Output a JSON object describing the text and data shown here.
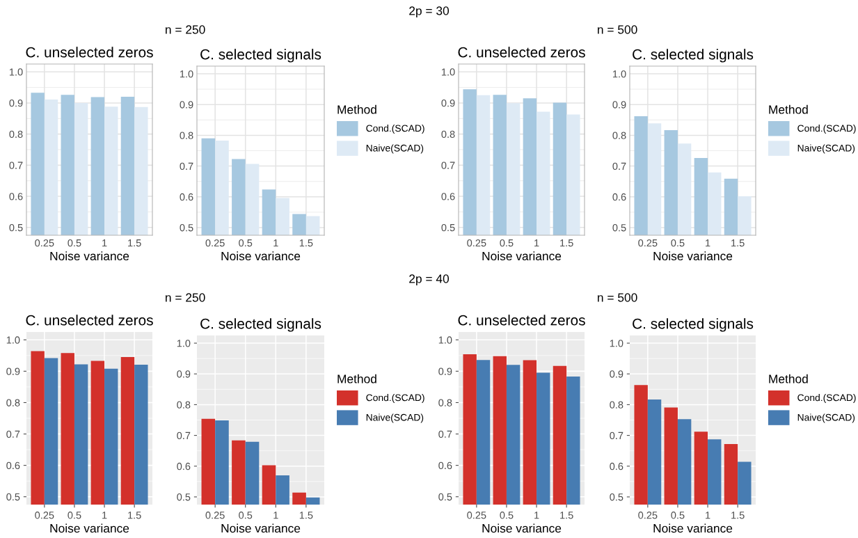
{
  "chart_data": [
    {
      "type": "bar",
      "title": "C. unselected zeros",
      "xlabel": "Noise variance",
      "categories": [
        "0.25",
        "0.5",
        "1",
        "1.5"
      ],
      "ylim": [
        0.475,
        1.025
      ],
      "yticks": [
        {
          "value": 0.5,
          "label": "0.5"
        },
        {
          "value": 0.6,
          "label": "0.6"
        },
        {
          "value": 0.7,
          "label": "0.7"
        },
        {
          "value": 0.8,
          "label": "0.8"
        },
        {
          "value": 0.9,
          "label": "0.9"
        },
        {
          "value": 1.0,
          "label": "1.0"
        }
      ],
      "grid": true,
      "annotations": [
        "2p = 30",
        "n = 250"
      ],
      "series": [
        {
          "color": "#a6c8e0",
          "values": [
            0.933,
            0.926,
            0.919,
            0.92
          ]
        },
        {
          "color": "#deeaf5",
          "values": [
            0.911,
            0.9,
            0.888,
            0.887
          ]
        }
      ]
    },
    {
      "type": "bar",
      "title": "C. selected signals",
      "xlabel": "Noise variance",
      "categories": [
        "0.25",
        "0.5",
        "1",
        "1.5"
      ],
      "ylim": [
        0.475,
        1.025
      ],
      "yticks": [
        {
          "value": 0.5,
          "label": "0.5"
        },
        {
          "value": 0.6,
          "label": "0.6"
        },
        {
          "value": 0.7,
          "label": "0.7"
        },
        {
          "value": 0.8,
          "label": "0.8"
        },
        {
          "value": 0.9,
          "label": "0.9"
        },
        {
          "value": 1.0,
          "label": "1.0"
        }
      ],
      "grid": true,
      "legend": "right",
      "legend_title": "Method",
      "series": [
        {
          "name": "Cond.(SCAD)",
          "color": "#a6c8e0",
          "values": [
            0.79,
            0.723,
            0.624,
            0.544
          ]
        },
        {
          "name": "Naive(SCAD)",
          "color": "#deeaf5",
          "values": [
            0.783,
            0.707,
            0.596,
            0.537
          ]
        }
      ]
    },
    {
      "type": "bar",
      "title": "C. unselected zeros",
      "xlabel": "Noise variance",
      "categories": [
        "0.25",
        "0.5",
        "1",
        "1.5"
      ],
      "ylim": [
        0.475,
        1.025
      ],
      "yticks": [
        {
          "value": 0.5,
          "label": "0.5"
        },
        {
          "value": 0.6,
          "label": "0.6"
        },
        {
          "value": 0.7,
          "label": "0.7"
        },
        {
          "value": 0.8,
          "label": "0.8"
        },
        {
          "value": 0.9,
          "label": "0.9"
        },
        {
          "value": 1.0,
          "label": "1.0"
        }
      ],
      "grid": true,
      "annotations": [
        "n = 500"
      ],
      "series": [
        {
          "color": "#a6c8e0",
          "values": [
            0.944,
            0.926,
            0.915,
            0.901
          ]
        },
        {
          "color": "#deeaf5",
          "values": [
            0.925,
            0.899,
            0.872,
            0.863
          ]
        }
      ]
    },
    {
      "type": "bar",
      "title": "C. selected signals",
      "xlabel": "Noise variance",
      "categories": [
        "0.25",
        "0.5",
        "1",
        "1.5"
      ],
      "ylim": [
        0.475,
        1.025
      ],
      "yticks": [
        {
          "value": 0.5,
          "label": "0.5"
        },
        {
          "value": 0.6,
          "label": "0.6"
        },
        {
          "value": 0.7,
          "label": "0.7"
        },
        {
          "value": 0.8,
          "label": "0.8"
        },
        {
          "value": 0.9,
          "label": "0.9"
        },
        {
          "value": 1.0,
          "label": "1.0"
        }
      ],
      "grid": true,
      "legend": "right",
      "legend_title": "Method",
      "series": [
        {
          "name": "Cond.(SCAD)",
          "color": "#a6c8e0",
          "values": [
            0.862,
            0.817,
            0.726,
            0.659
          ]
        },
        {
          "name": "Naive(SCAD)",
          "color": "#deeaf5",
          "values": [
            0.839,
            0.773,
            0.679,
            0.602
          ]
        }
      ]
    },
    {
      "type": "bar",
      "title": "C. unselected zeros",
      "xlabel": "Noise variance",
      "categories": [
        "0.25",
        "0.5",
        "1",
        "1.5"
      ],
      "ylim": [
        0.475,
        1.025
      ],
      "yticks": [
        {
          "value": 0.5,
          "label": "0.5"
        },
        {
          "value": 0.6,
          "label": "0.6"
        },
        {
          "value": 0.7,
          "label": "0.7"
        },
        {
          "value": 0.8,
          "label": "0.8"
        },
        {
          "value": 0.9,
          "label": "0.9"
        },
        {
          "value": 1.0,
          "label": "1.0"
        }
      ],
      "grid": true,
      "annotations": [
        "2p = 40",
        "n = 250"
      ],
      "series": [
        {
          "color": "#d3312b",
          "values": [
            0.964,
            0.958,
            0.933,
            0.945
          ]
        },
        {
          "color": "#477cb2",
          "values": [
            0.942,
            0.922,
            0.908,
            0.921
          ]
        }
      ]
    },
    {
      "type": "bar",
      "title": "C. selected signals",
      "xlabel": "Noise variance",
      "categories": [
        "0.25",
        "0.5",
        "1",
        "1.5"
      ],
      "ylim": [
        0.475,
        1.025
      ],
      "yticks": [
        {
          "value": 0.5,
          "label": "0.5"
        },
        {
          "value": 0.6,
          "label": "0.6"
        },
        {
          "value": 0.7,
          "label": "0.7"
        },
        {
          "value": 0.8,
          "label": "0.8"
        },
        {
          "value": 0.9,
          "label": "0.9"
        },
        {
          "value": 1.0,
          "label": "1.0"
        }
      ],
      "grid": true,
      "legend": "right",
      "legend_title": "Method",
      "series": [
        {
          "name": "Cond.(SCAD)",
          "color": "#d3312b",
          "values": [
            0.754,
            0.684,
            0.603,
            0.514
          ]
        },
        {
          "name": "Naive(SCAD)",
          "color": "#477cb2",
          "values": [
            0.749,
            0.679,
            0.57,
            0.498
          ]
        }
      ]
    },
    {
      "type": "bar",
      "title": "C. unselected zeros",
      "xlabel": "Noise variance",
      "categories": [
        "0.25",
        "0.5",
        "1",
        "1.5"
      ],
      "ylim": [
        0.475,
        1.025
      ],
      "yticks": [
        {
          "value": 0.5,
          "label": "0.5"
        },
        {
          "value": 0.6,
          "label": "0.6"
        },
        {
          "value": 0.7,
          "label": "0.7"
        },
        {
          "value": 0.8,
          "label": "0.8"
        },
        {
          "value": 0.9,
          "label": "0.9"
        },
        {
          "value": 1.0,
          "label": "1.0"
        }
      ],
      "grid": true,
      "annotations": [
        "n = 500"
      ],
      "series": [
        {
          "color": "#d3312b",
          "values": [
            0.954,
            0.948,
            0.935,
            0.917
          ]
        },
        {
          "color": "#477cb2",
          "values": [
            0.936,
            0.92,
            0.895,
            0.883
          ]
        }
      ]
    },
    {
      "type": "bar",
      "title": "C. selected signals",
      "xlabel": "Noise variance",
      "categories": [
        "0.25",
        "0.5",
        "1",
        "1.5"
      ],
      "ylim": [
        0.475,
        1.025
      ],
      "yticks": [
        {
          "value": 0.5,
          "label": "0.5"
        },
        {
          "value": 0.6,
          "label": "0.6"
        },
        {
          "value": 0.7,
          "label": "0.7"
        },
        {
          "value": 0.8,
          "label": "0.8"
        },
        {
          "value": 0.9,
          "label": "0.9"
        },
        {
          "value": 1.0,
          "label": "1.0"
        }
      ],
      "grid": true,
      "legend": "right",
      "legend_title": "Method",
      "series": [
        {
          "name": "Cond.(SCAD)",
          "color": "#d3312b",
          "values": [
            0.864,
            0.791,
            0.712,
            0.672
          ]
        },
        {
          "name": "Naive(SCAD)",
          "color": "#477cb2",
          "values": [
            0.817,
            0.753,
            0.687,
            0.614
          ]
        }
      ]
    }
  ]
}
